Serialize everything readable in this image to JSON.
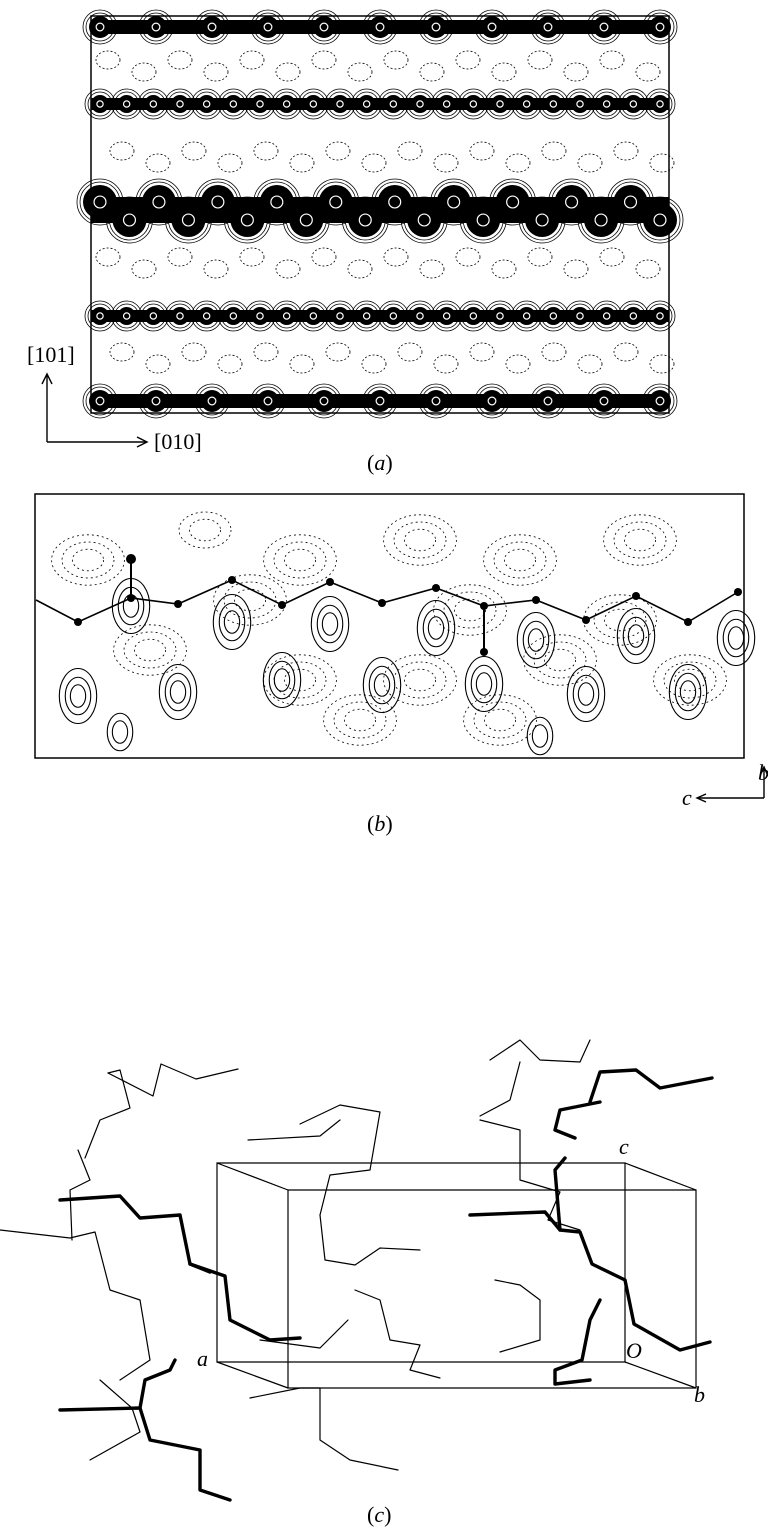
{
  "figure": {
    "panel_a": {
      "caption": "(a)",
      "caption_letter": "a",
      "axis_vertical": "[101]",
      "axis_horizontal": "[010]"
    },
    "panel_b": {
      "caption": "(b)",
      "caption_letter": "b",
      "axis_vertical": "b",
      "axis_horizontal": "c"
    },
    "panel_c": {
      "caption": "(c)",
      "caption_letter": "c",
      "cell_labels": {
        "a": "a",
        "b": "b",
        "c": "c",
        "origin": "O"
      }
    }
  }
}
